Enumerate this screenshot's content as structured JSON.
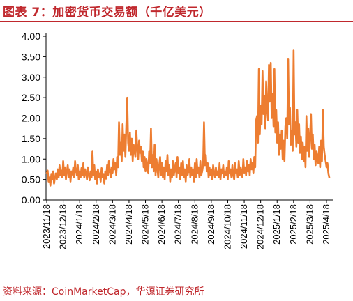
{
  "figure": {
    "title": "图表 7：加密货币交易额（千亿美元）",
    "source": "资料来源：CoinMarketCap，华源证券研究所"
  },
  "colors": {
    "accent": "#c0282d",
    "series": "#ed7d31",
    "axis": "#000000"
  },
  "chart_data": {
    "type": "line",
    "title": "加密货币交易额（千亿美元）",
    "xlabel": "",
    "ylabel": "",
    "ylim": [
      0,
      4
    ],
    "yticks": [
      "0.00",
      "0.50",
      "1.00",
      "1.50",
      "2.00",
      "2.50",
      "3.00",
      "3.50",
      "4.00"
    ],
    "x_tick_labels": [
      "2023/11/18",
      "2023/12/18",
      "2024/1/18",
      "2024/2/18",
      "2024/3/18",
      "2024/4/18",
      "2024/5/18",
      "2024/6/18",
      "2024/7/18",
      "2024/8/18",
      "2024/9/18",
      "2024/10/18",
      "2024/11/18",
      "2024/12/18",
      "2025/1/18",
      "2025/2/18",
      "2025/3/18",
      "2025/4/18"
    ],
    "grid": false,
    "legend": "none",
    "series": [
      {
        "values": [
          0.65,
          0.72,
          0.45,
          0.55,
          0.35,
          0.62,
          0.5,
          0.7,
          0.4,
          0.55,
          0.65,
          0.5,
          0.75,
          0.55,
          0.85,
          0.6,
          0.72,
          0.55,
          0.95,
          0.6,
          0.8,
          0.5,
          0.7,
          0.85,
          0.55,
          0.75,
          0.45,
          0.7,
          0.62,
          0.8,
          0.55,
          0.95,
          0.7,
          0.6,
          0.85,
          0.5,
          0.7,
          0.55,
          0.78,
          0.6,
          0.9,
          0.55,
          0.75,
          0.65,
          0.5,
          0.8,
          0.62,
          0.48,
          0.7,
          0.55,
          1.2,
          0.6,
          0.85,
          0.5,
          0.7,
          0.4,
          0.75,
          0.55,
          0.65,
          0.45,
          0.78,
          0.55,
          0.62,
          0.4,
          0.7,
          0.52,
          0.85,
          0.6,
          0.95,
          0.7,
          0.55,
          0.8,
          0.65,
          1.0,
          0.75,
          0.9,
          0.6,
          1.05,
          0.8,
          1.9,
          1.1,
          1.4,
          0.95,
          1.85,
          1.2,
          1.6,
          1.05,
          1.8,
          2.5,
          1.4,
          1.2,
          1.65,
          1.1,
          1.5,
          0.95,
          1.35,
          1.2,
          1.05,
          1.7,
          1.25,
          1.0,
          1.45,
          1.15,
          1.3,
          0.95,
          1.2,
          0.8,
          1.05,
          0.7,
          1.0,
          0.85,
          0.65,
          1.2,
          0.9,
          1.75,
          0.8,
          1.1,
          0.7,
          1.35,
          0.6,
          1.0,
          0.75,
          0.55,
          0.85,
          1.05,
          0.6,
          0.9,
          0.55,
          0.8,
          0.5,
          0.95,
          0.7,
          1.1,
          0.6,
          0.85,
          0.45,
          0.75,
          0.55,
          0.95,
          0.6,
          0.75,
          0.9,
          0.55,
          1.05,
          0.65,
          0.8,
          0.5,
          0.9,
          0.6,
          0.95,
          0.55,
          0.75,
          0.45,
          0.85,
          0.6,
          0.7,
          1.0,
          0.55,
          0.8,
          0.6,
          0.75,
          0.45,
          0.9,
          0.55,
          1.0,
          0.65,
          0.8,
          0.55,
          0.95,
          0.6,
          0.7,
          0.85,
          1.9,
          0.85,
          1.1,
          0.7,
          0.9,
          0.55,
          0.8,
          0.6,
          0.75,
          0.5,
          0.85,
          0.65,
          0.55,
          0.8,
          0.6,
          0.7,
          0.55,
          0.9,
          0.5,
          0.75,
          0.65,
          0.85,
          0.55,
          0.7,
          0.6,
          0.8,
          0.5,
          0.95,
          0.65,
          0.75,
          0.55,
          0.85,
          0.6,
          0.5,
          0.9,
          0.65,
          0.75,
          0.55,
          0.95,
          0.6,
          0.8,
          0.7,
          0.55,
          1.0,
          0.65,
          0.8,
          0.6,
          0.95,
          0.7,
          0.85,
          0.6,
          1.0,
          0.75,
          0.9,
          0.65,
          1.05,
          0.8,
          1.95,
          2.05,
          1.4,
          3.2,
          1.6,
          2.3,
          1.85,
          3.15,
          2.1,
          2.55,
          1.75,
          2.9,
          2.2,
          1.95,
          3.3,
          2.4,
          3.35,
          2.0,
          2.6,
          1.8,
          3.2,
          1.65,
          2.2,
          1.4,
          1.9,
          1.1,
          1.6,
          1.25,
          1.7,
          1.0,
          1.45,
          0.95,
          1.8,
          2.0,
          1.5,
          3.45,
          1.85,
          2.25,
          1.35,
          1.7,
          1.2,
          3.65,
          1.6,
          1.9,
          1.3,
          2.2,
          1.4,
          1.85,
          1.15,
          1.55,
          1.0,
          1.4,
          0.95,
          1.3,
          0.8,
          2.05,
          1.2,
          1.75,
          1.05,
          1.55,
          2.1,
          1.25,
          1.6,
          1.0,
          1.35,
          0.85,
          1.2,
          1.05,
          0.9,
          1.3,
          0.8,
          1.45,
          0.95,
          2.2,
          1.3,
          1.1,
          0.95,
          0.8,
          0.9,
          0.65,
          0.55
        ]
      }
    ]
  }
}
